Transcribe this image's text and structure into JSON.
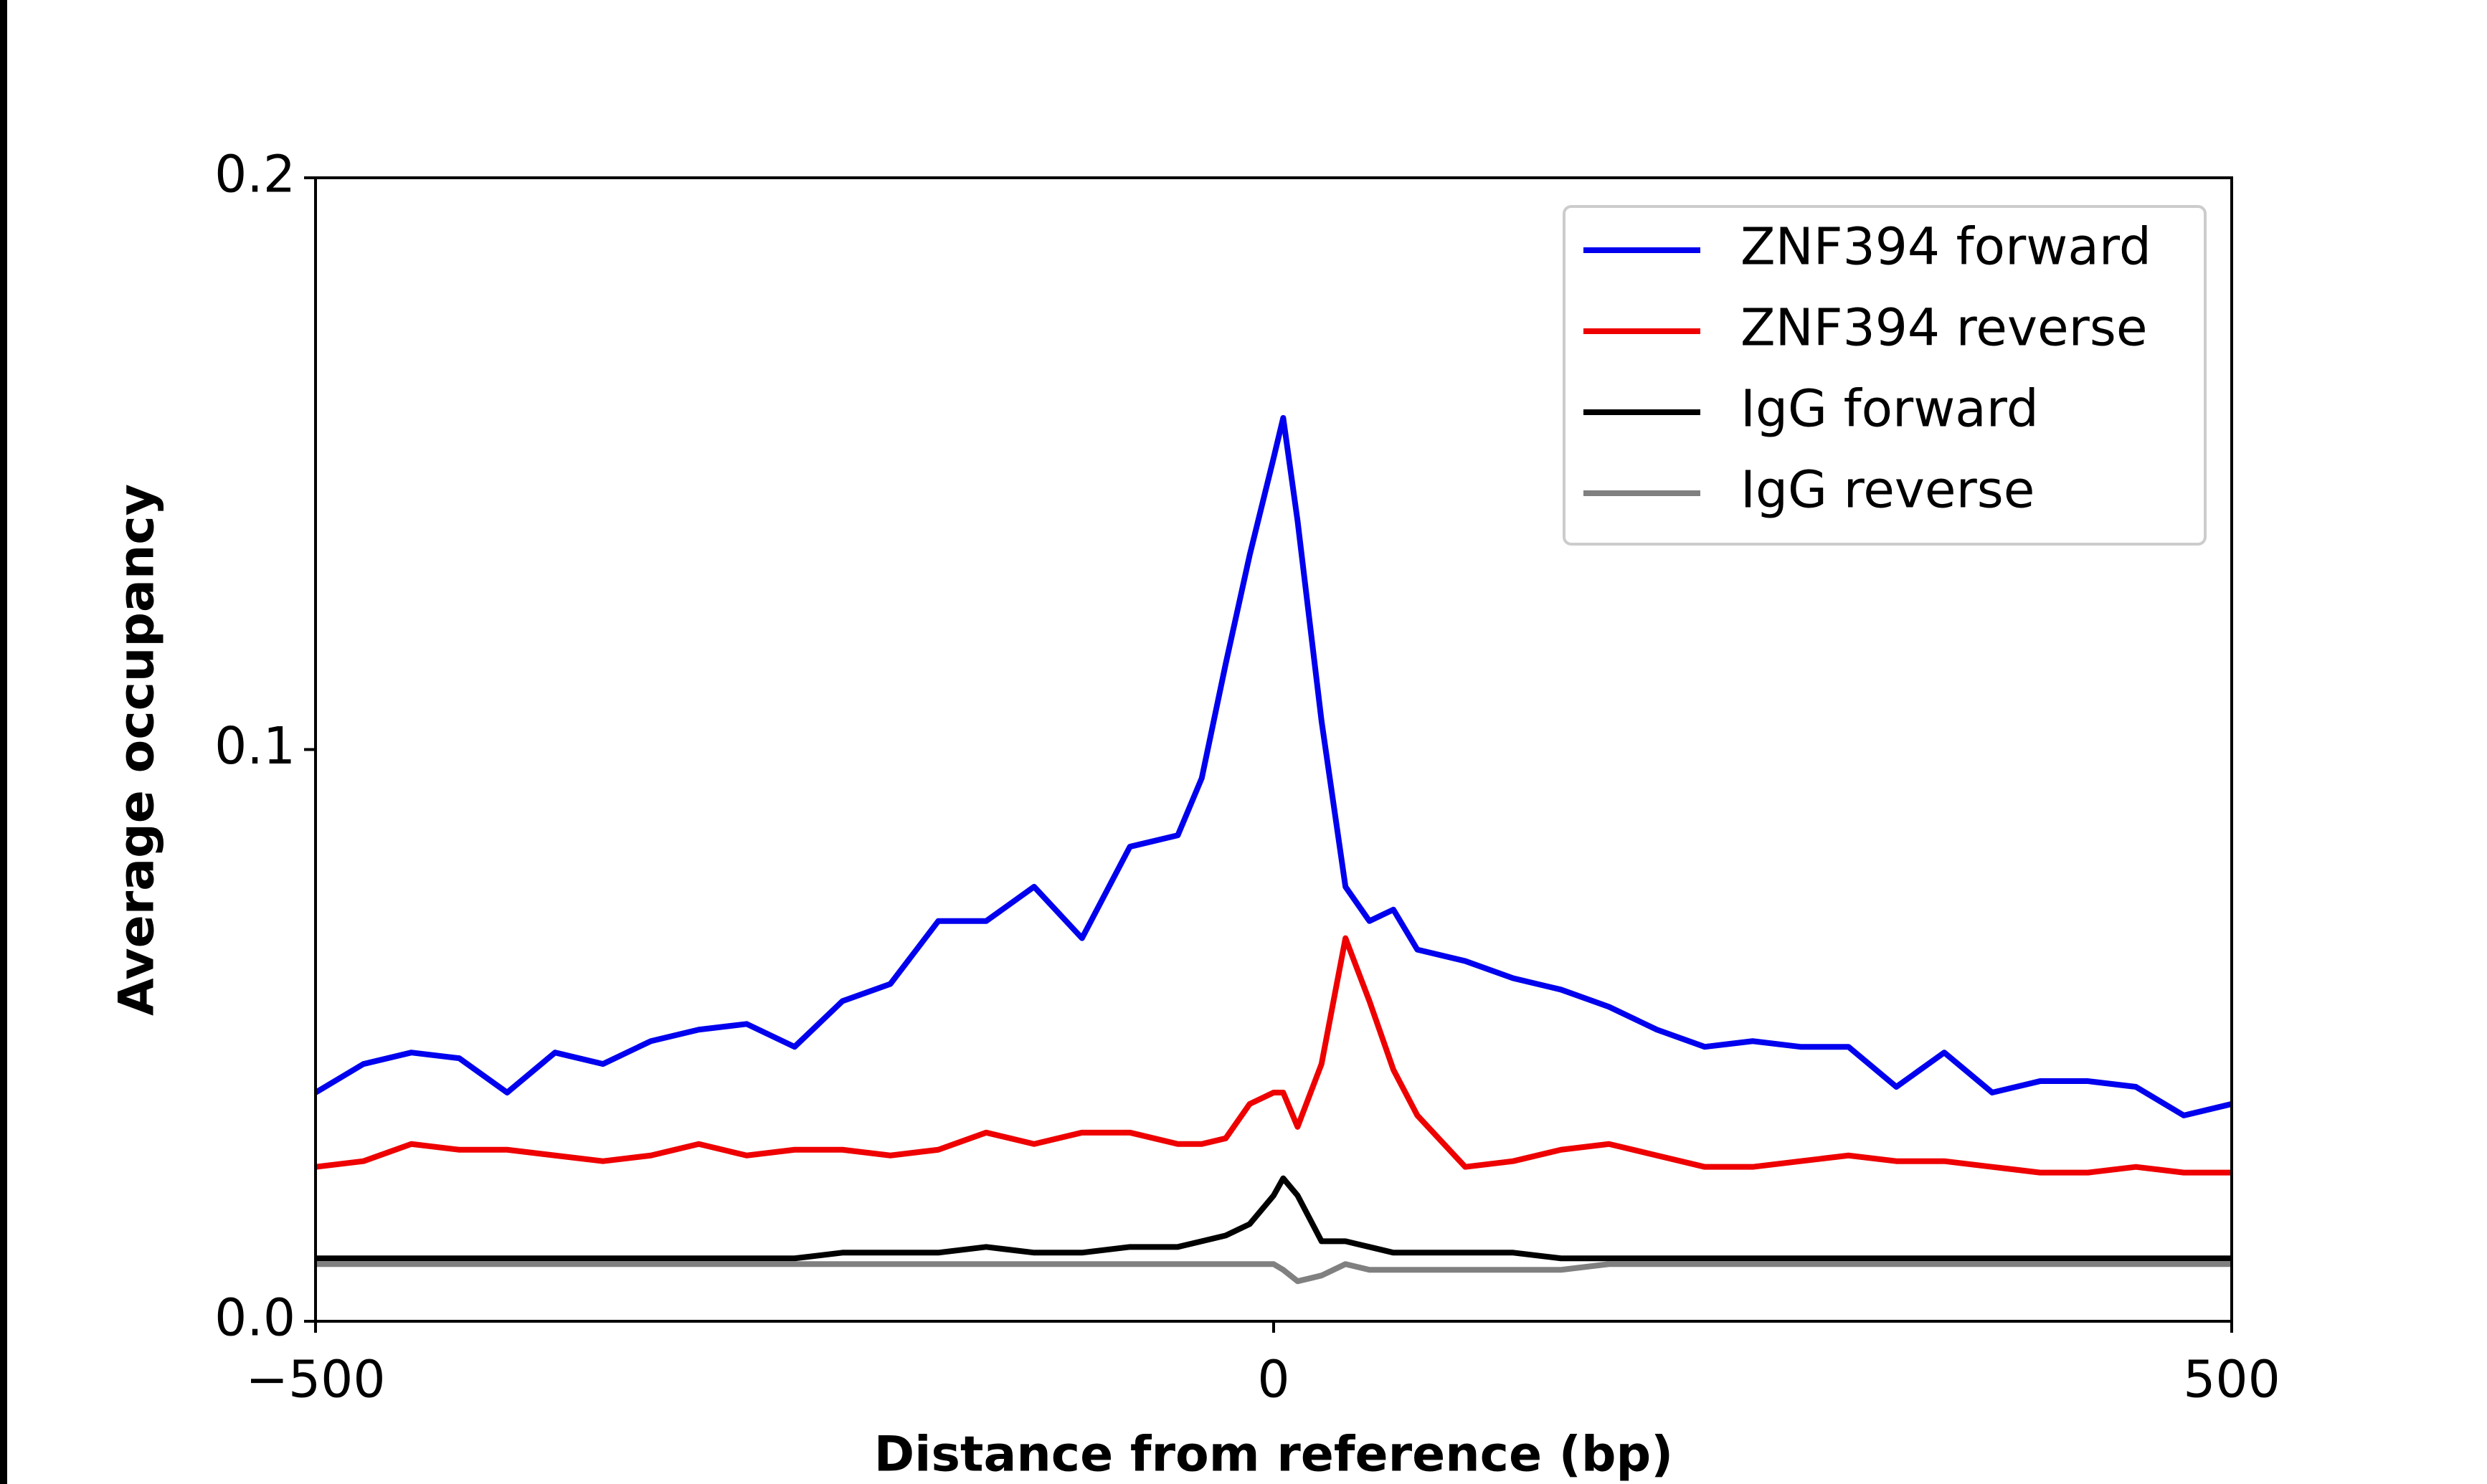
{
  "chart_data": {
    "type": "line",
    "xlabel": "Distance from reference (bp)",
    "ylabel": "Average occupancy",
    "x": [
      -500,
      -475,
      -450,
      -425,
      -400,
      -375,
      -350,
      -325,
      -300,
      -275,
      -250,
      -225,
      -200,
      -175,
      -150,
      -125,
      -100,
      -75,
      -50,
      -37.5,
      -25,
      -12.5,
      0,
      5,
      12.5,
      25,
      37.5,
      50,
      62.5,
      75,
      100,
      125,
      150,
      175,
      200,
      225,
      250,
      275,
      300,
      325,
      350,
      375,
      400,
      425,
      450,
      475,
      500
    ],
    "series": [
      {
        "name": "ZNF394 forward",
        "color": "#0000ee",
        "values": [
          0.04,
          0.045,
          0.047,
          0.046,
          0.04,
          0.047,
          0.045,
          0.049,
          0.051,
          0.052,
          0.048,
          0.056,
          0.059,
          0.07,
          0.07,
          0.076,
          0.067,
          0.083,
          0.085,
          0.095,
          0.115,
          0.134,
          0.151,
          0.158,
          0.14,
          0.105,
          0.076,
          0.07,
          0.072,
          0.065,
          0.063,
          0.06,
          0.058,
          0.055,
          0.051,
          0.048,
          0.049,
          0.048,
          0.048,
          0.041,
          0.047,
          0.04,
          0.042,
          0.042,
          0.041,
          0.036,
          0.038
        ]
      },
      {
        "name": "ZNF394 reverse",
        "color": "#ee0000",
        "values": [
          0.027,
          0.028,
          0.031,
          0.03,
          0.03,
          0.029,
          0.028,
          0.029,
          0.031,
          0.029,
          0.03,
          0.03,
          0.029,
          0.03,
          0.033,
          0.031,
          0.033,
          0.033,
          0.031,
          0.031,
          0.032,
          0.038,
          0.04,
          0.04,
          0.034,
          0.045,
          0.067,
          0.056,
          0.044,
          0.036,
          0.027,
          0.028,
          0.03,
          0.031,
          0.029,
          0.027,
          0.027,
          0.028,
          0.029,
          0.028,
          0.028,
          0.027,
          0.026,
          0.026,
          0.027,
          0.026,
          0.026
        ]
      },
      {
        "name": "IgG forward",
        "color": "#000000",
        "values": [
          0.011,
          0.011,
          0.011,
          0.011,
          0.011,
          0.011,
          0.011,
          0.011,
          0.011,
          0.011,
          0.011,
          0.012,
          0.012,
          0.012,
          0.013,
          0.012,
          0.012,
          0.013,
          0.013,
          0.014,
          0.015,
          0.017,
          0.022,
          0.025,
          0.022,
          0.014,
          0.014,
          0.013,
          0.012,
          0.012,
          0.012,
          0.012,
          0.011,
          0.011,
          0.011,
          0.011,
          0.011,
          0.011,
          0.011,
          0.011,
          0.011,
          0.011,
          0.011,
          0.011,
          0.011,
          0.011,
          0.011
        ]
      },
      {
        "name": "IgG reverse",
        "color": "#808080",
        "values": [
          0.01,
          0.01,
          0.01,
          0.01,
          0.01,
          0.01,
          0.01,
          0.01,
          0.01,
          0.01,
          0.01,
          0.01,
          0.01,
          0.01,
          0.01,
          0.01,
          0.01,
          0.01,
          0.01,
          0.01,
          0.01,
          0.01,
          0.01,
          0.009,
          0.007,
          0.008,
          0.01,
          0.009,
          0.009,
          0.009,
          0.009,
          0.009,
          0.009,
          0.01,
          0.01,
          0.01,
          0.01,
          0.01,
          0.01,
          0.01,
          0.01,
          0.01,
          0.01,
          0.01,
          0.01,
          0.01,
          0.01
        ]
      }
    ],
    "xlim": [
      -500,
      500
    ],
    "xticks": [
      {
        "value": -500,
        "label": "−500"
      },
      0,
      500
    ],
    "ylim": [
      0,
      0.2
    ],
    "yticks": [
      {
        "value": 0,
        "label": "0.0"
      },
      0.1,
      0.2
    ],
    "legend": "upper right",
    "grid": false
  }
}
